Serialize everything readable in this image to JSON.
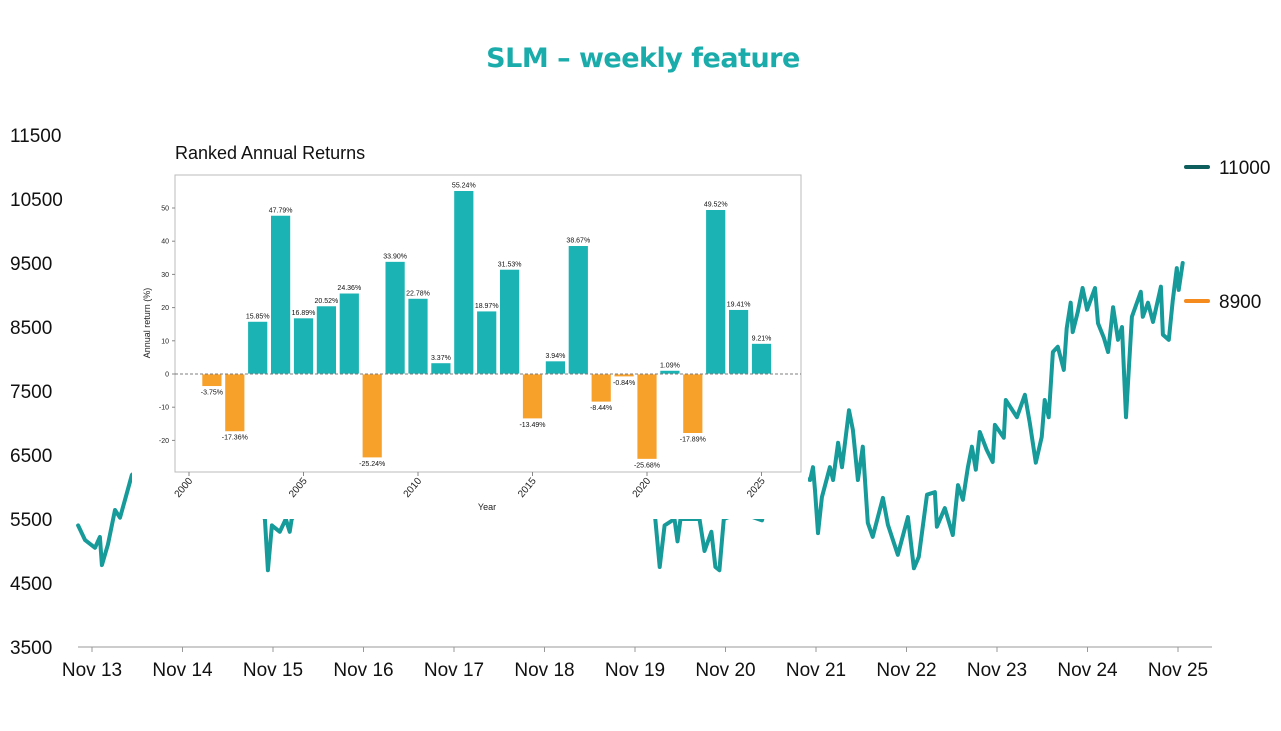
{
  "title": "SLM – weekly feature",
  "colors": {
    "title": "#1aabab",
    "price_line": "#169a9a",
    "level_high": "#0f5e5e",
    "level_low": "#f58a1f",
    "positive_bar": "#1bb3b3",
    "negative_bar": "#f8a12a"
  },
  "chart_data": [
    {
      "type": "line",
      "title": "SLM – weekly feature",
      "ylim": [
        3500,
        11500
      ],
      "y_ticks": [
        "11500",
        "10500",
        "9500",
        "8500",
        "7500",
        "6500",
        "5500",
        "4500",
        "3500"
      ],
      "x_ticks": [
        "Nov 13",
        "Nov 14",
        "Nov 15",
        "Nov 16",
        "Nov 17",
        "Nov 18",
        "Nov 19",
        "Nov 20",
        "Nov 21",
        "Nov 22",
        "Nov 23",
        "Nov 24",
        "Nov 25"
      ],
      "grid": false,
      "legend": {
        "placement": "right",
        "entries": [
          {
            "name": "11000",
            "color": "#0f5e5e"
          },
          {
            "name": "8900",
            "color": "#f58a1f"
          }
        ]
      },
      "series": [
        {
          "color": "#169a9a",
          "points": [
            [
              "2013-09-06",
              5400
            ],
            [
              "2013-10-04",
              5170
            ],
            [
              "2013-11-13",
              5050
            ],
            [
              "2013-12-03",
              5220
            ],
            [
              "2013-12-11",
              4780
            ],
            [
              "2014-01-04",
              5100
            ],
            [
              "2014-02-02",
              5640
            ],
            [
              "2014-02-22",
              5520
            ],
            [
              "2014-03-14",
              5800
            ],
            [
              "2014-04-11",
              6190
            ],
            [
              "2014-06-23",
              6400
            ],
            [
              "2014-11-01",
              6600
            ],
            [
              "2015-02-27",
              6200
            ],
            [
              "2015-06-28",
              6000
            ],
            [
              "2015-09-30",
              5500
            ],
            [
              "2015-10-12",
              4700
            ],
            [
              "2015-10-28",
              5400
            ],
            [
              "2015-11-29",
              5300
            ],
            [
              "2015-12-23",
              5500
            ],
            [
              "2016-01-08",
              5300
            ],
            [
              "2016-01-16",
              5500
            ],
            [
              "2016-05-09",
              6000
            ],
            [
              "2016-11-01",
              6500
            ],
            [
              "2017-03-26",
              7000
            ],
            [
              "2017-11-05",
              7200
            ],
            [
              "2018-04-06",
              7000
            ],
            [
              "2018-11-01",
              6500
            ],
            [
              "2019-05-25",
              6200
            ],
            [
              "2019-11-05",
              6000
            ],
            [
              "2020-01-20",
              5600
            ],
            [
              "2020-02-09",
              4750
            ],
            [
              "2020-02-29",
              5400
            ],
            [
              "2020-04-09",
              5500
            ],
            [
              "2020-04-21",
              5150
            ],
            [
              "2020-05-03",
              5500
            ],
            [
              "2020-07-19",
              5500
            ],
            [
              "2020-08-08",
              5000
            ],
            [
              "2020-09-05",
              5300
            ],
            [
              "2020-09-21",
              4750
            ],
            [
              "2020-10-07",
              4700
            ],
            [
              "2020-10-25",
              5500
            ],
            [
              "2020-12-29",
              5600
            ],
            [
              "2021-03-28",
              5480
            ],
            [
              "2021-04-29",
              6000
            ],
            [
              "2021-07-18",
              6200
            ],
            [
              "2021-10-08",
              6110
            ],
            [
              "2021-10-20",
              6310
            ],
            [
              "2021-10-28",
              5950
            ],
            [
              "2021-11-09",
              5280
            ],
            [
              "2021-11-25",
              5840
            ],
            [
              "2021-12-27",
              6310
            ],
            [
              "2022-01-09",
              6110
            ],
            [
              "2022-01-29",
              6690
            ],
            [
              "2022-02-14",
              6310
            ],
            [
              "2022-03-14",
              7200
            ],
            [
              "2022-03-30",
              6890
            ],
            [
              "2022-04-19",
              6110
            ],
            [
              "2022-05-09",
              6630
            ],
            [
              "2022-05-29",
              5440
            ],
            [
              "2022-06-18",
              5220
            ],
            [
              "2022-07-29",
              5830
            ],
            [
              "2022-08-18",
              5410
            ],
            [
              "2022-09-27",
              4940
            ],
            [
              "2022-11-07",
              5530
            ],
            [
              "2022-12-01",
              4730
            ],
            [
              "2022-12-21",
              4910
            ],
            [
              "2023-01-23",
              5880
            ],
            [
              "2023-02-24",
              5920
            ],
            [
              "2023-03-04",
              5380
            ],
            [
              "2023-04-05",
              5670
            ],
            [
              "2023-05-07",
              5250
            ],
            [
              "2023-05-28",
              6030
            ],
            [
              "2023-06-17",
              5800
            ],
            [
              "2023-07-07",
              6310
            ],
            [
              "2023-07-23",
              6630
            ],
            [
              "2023-08-08",
              6270
            ],
            [
              "2023-08-24",
              6860
            ],
            [
              "2023-09-21",
              6580
            ],
            [
              "2023-10-15",
              6390
            ],
            [
              "2023-10-24",
              6970
            ],
            [
              "2023-11-29",
              6770
            ],
            [
              "2023-12-07",
              7360
            ],
            [
              "2024-01-21",
              7090
            ],
            [
              "2024-02-22",
              7440
            ],
            [
              "2024-03-13",
              7000
            ],
            [
              "2024-04-06",
              6380
            ],
            [
              "2024-04-30",
              6780
            ],
            [
              "2024-05-12",
              7360
            ],
            [
              "2024-05-28",
              7090
            ],
            [
              "2024-06-14",
              8110
            ],
            [
              "2024-07-04",
              8190
            ],
            [
              "2024-07-28",
              7830
            ],
            [
              "2024-08-09",
              8480
            ],
            [
              "2024-08-25",
              8880
            ],
            [
              "2024-09-02",
              8420
            ],
            [
              "2024-09-22",
              8730
            ],
            [
              "2024-10-12",
              9110
            ],
            [
              "2024-10-30",
              8770
            ],
            [
              "2024-12-01",
              9110
            ],
            [
              "2024-12-13",
              8560
            ],
            [
              "2025-01-06",
              8330
            ],
            [
              "2025-01-23",
              8110
            ],
            [
              "2025-02-12",
              8810
            ],
            [
              "2025-03-04",
              8300
            ],
            [
              "2025-03-20",
              8500
            ],
            [
              "2025-04-05",
              7090
            ],
            [
              "2025-04-29",
              8660
            ],
            [
              "2025-06-04",
              9050
            ],
            [
              "2025-06-12",
              8660
            ],
            [
              "2025-07-03",
              8880
            ],
            [
              "2025-07-23",
              8580
            ],
            [
              "2025-08-24",
              9130
            ],
            [
              "2025-09-01",
              8380
            ],
            [
              "2025-09-25",
              8300
            ],
            [
              "2025-10-11",
              8920
            ],
            [
              "2025-10-27",
              9420
            ],
            [
              "2025-11-04",
              9080
            ],
            [
              "2025-11-20",
              9500
            ]
          ]
        }
      ]
    },
    {
      "type": "bar",
      "title": "Ranked Annual Returns",
      "xlabel": "Year",
      "ylabel": "Annual return (%)",
      "ylim": [
        -30,
        60
      ],
      "y_ticks": [
        "-20",
        "-10",
        "0",
        "10",
        "20",
        "30",
        "40",
        "50"
      ],
      "x_ticks": [
        "2000",
        "2005",
        "2010",
        "2015",
        "2020",
        "2025"
      ],
      "categories": [
        2001,
        2002,
        2003,
        2004,
        2005,
        2006,
        2007,
        2008,
        2009,
        2010,
        2011,
        2012,
        2013,
        2014,
        2015,
        2016,
        2017,
        2018,
        2019,
        2020,
        2021,
        2022,
        2023,
        2024,
        2025
      ],
      "values": [
        -3.75,
        -17.36,
        15.85,
        47.79,
        16.89,
        20.52,
        24.36,
        -25.24,
        33.9,
        22.78,
        3.37,
        55.24,
        18.97,
        31.53,
        -13.49,
        3.94,
        38.67,
        -8.44,
        -0.84,
        -25.68,
        1.09,
        -17.89,
        49.52,
        19.41,
        9.21
      ],
      "labels": [
        "-3.75%",
        "-17.36%",
        "15.85%",
        "47.79%",
        "16.89%",
        "20.52%",
        "24.36%",
        "-25.24%",
        "33.90%",
        "22.78%",
        "3.37%",
        "55.24%",
        "18.97%",
        "31.53%",
        "-13.49%",
        "3.94%",
        "38.67%",
        "-8.44%",
        "-0.84%",
        "-25.68%",
        "1.09%",
        "-17.89%",
        "49.52%",
        "19.41%",
        "9.21%"
      ],
      "zero_line": "dashed",
      "grid": false
    }
  ]
}
